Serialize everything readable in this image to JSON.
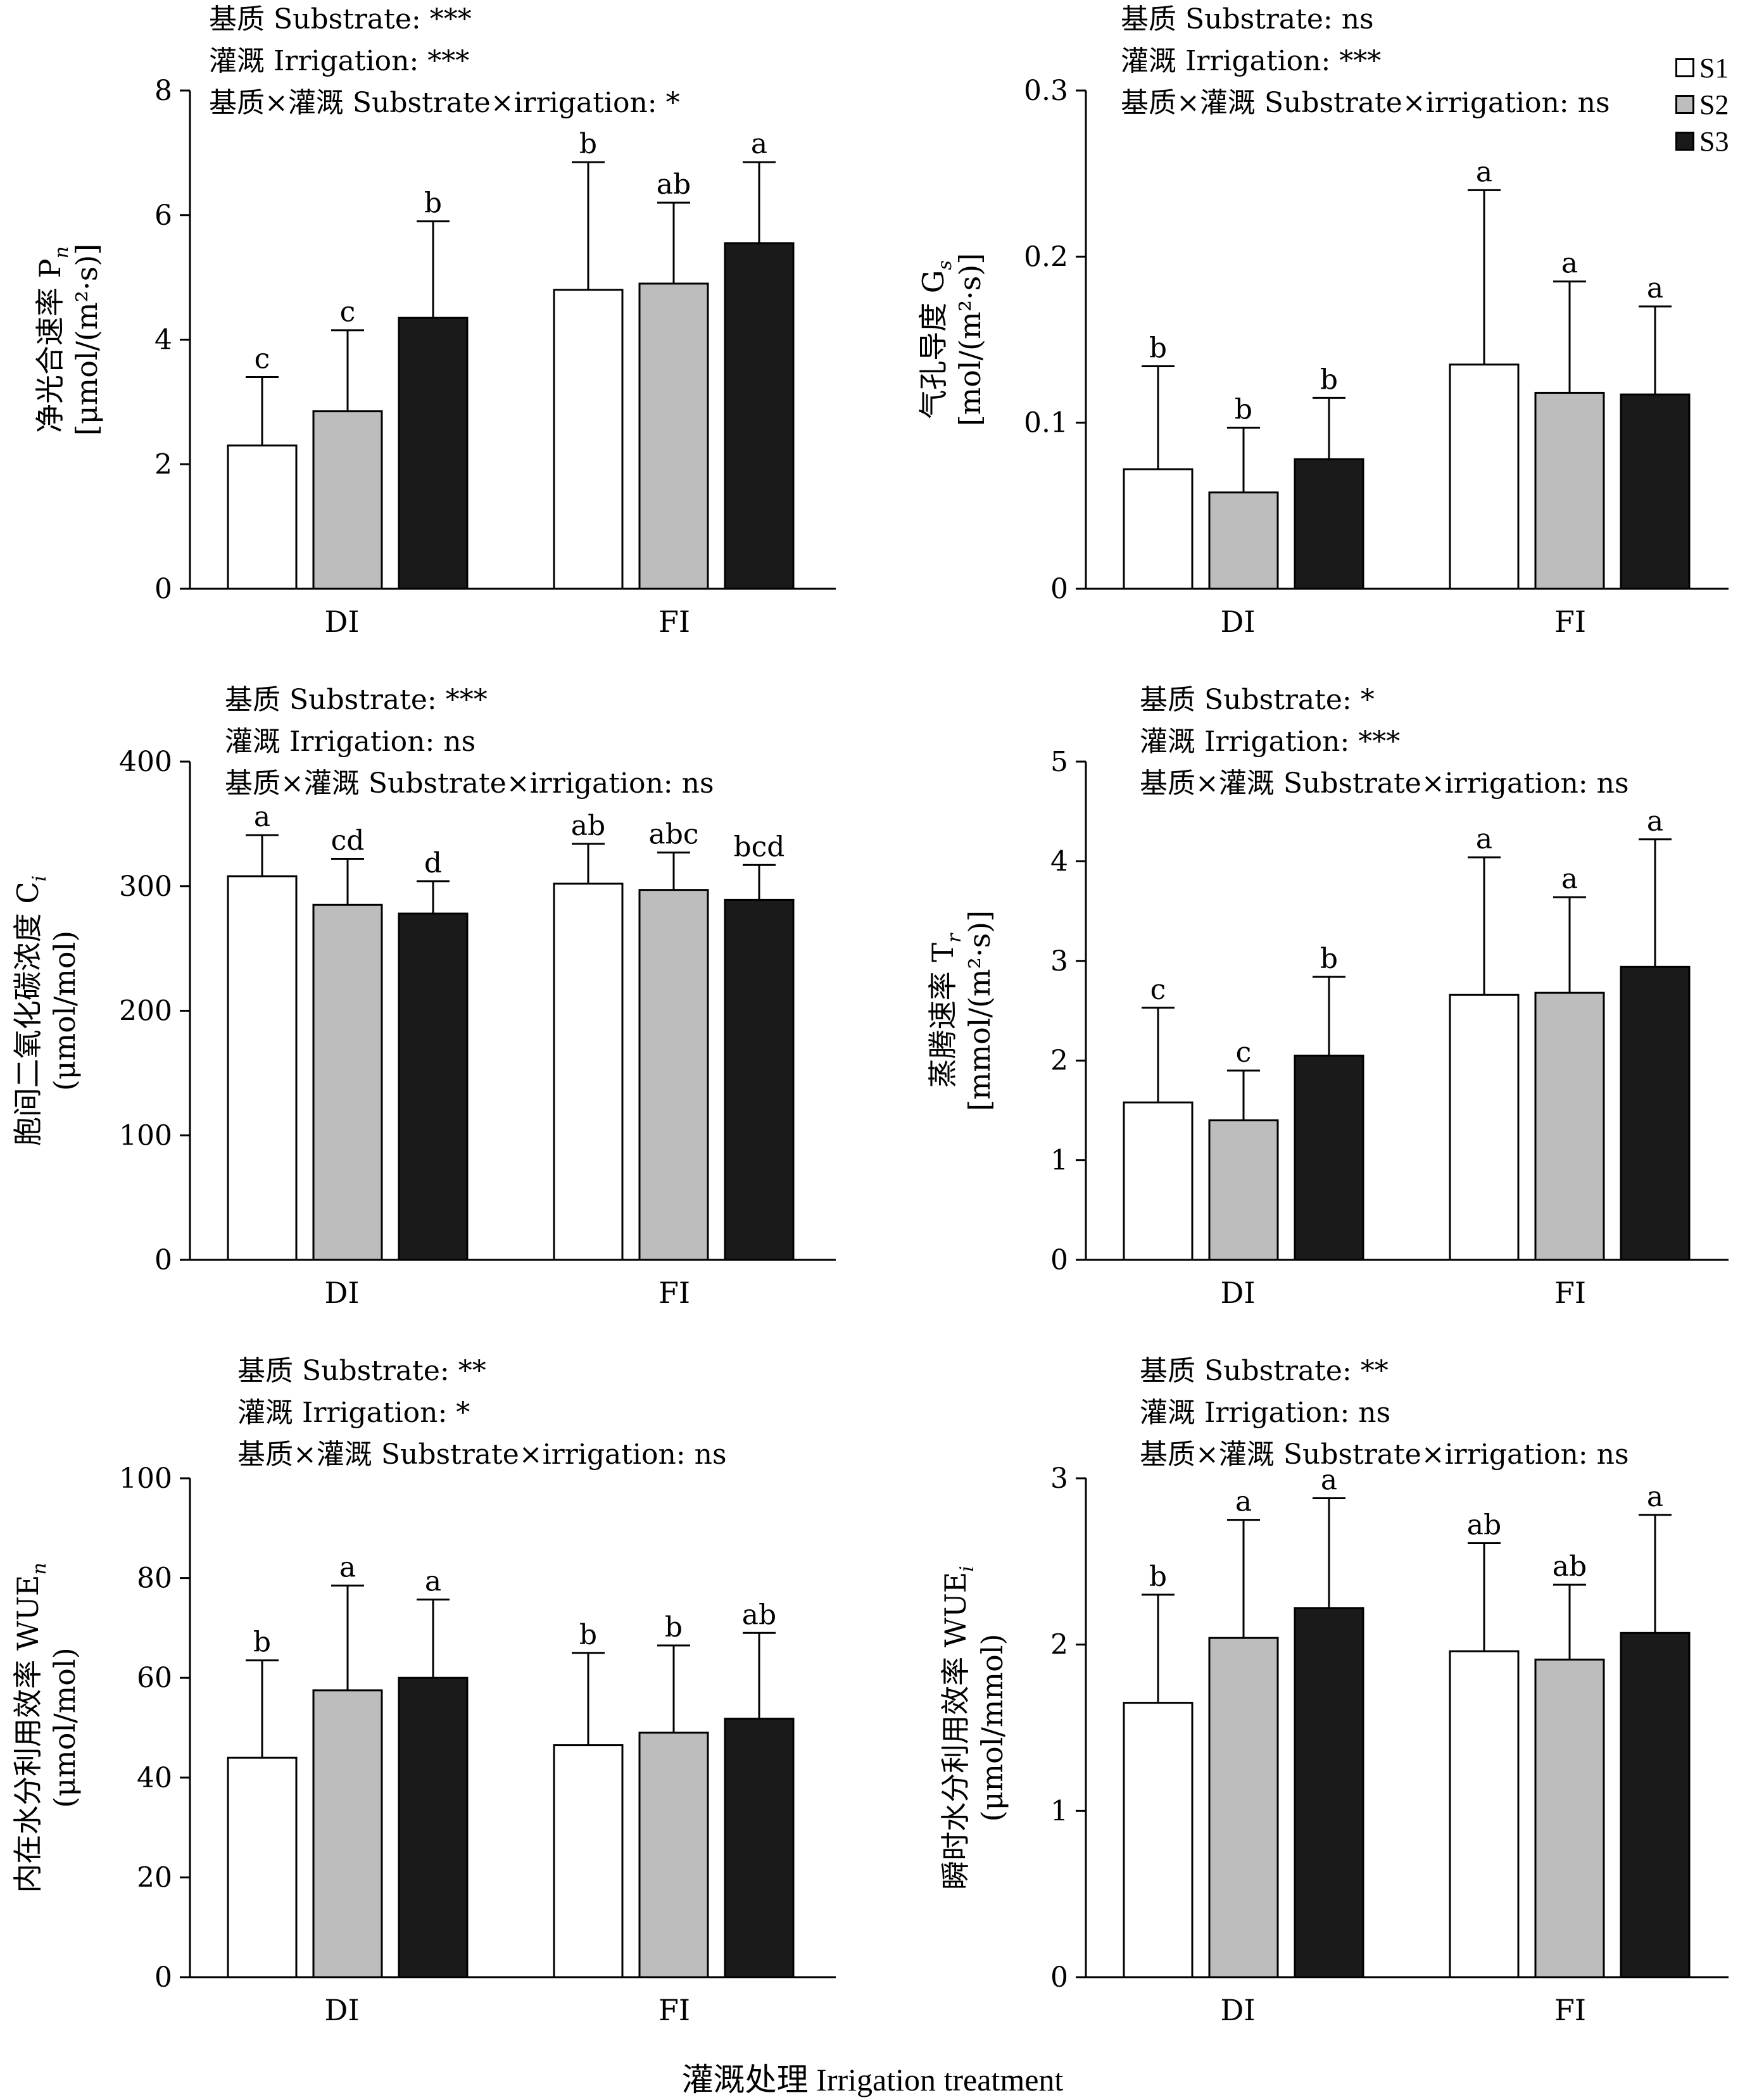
{
  "figure": {
    "xlabel": "灌溉处理 Irrigation treatment",
    "legend": [
      {
        "name": "S1",
        "color": "#ffffff"
      },
      {
        "name": "S2",
        "color": "#bdbdbd"
      },
      {
        "name": "S3",
        "color": "#1a1a1a"
      }
    ]
  },
  "chart_data": [
    {
      "type": "bar",
      "ylabel_main": "净光合速率 P",
      "ylabel_sub": "n",
      "ylabel_unit": "[μmol/(m²·s)]",
      "ylim": [
        0,
        8
      ],
      "yticks": [
        0,
        2,
        4,
        6,
        8
      ],
      "categories": [
        "DI",
        "FI"
      ],
      "stats": [
        "基质 Substrate: ***",
        "灌溉 Irrigation: ***",
        "基质×灌溉 Substrate×irrigation: *"
      ],
      "series": [
        {
          "name": "S1",
          "values": [
            2.3,
            4.8
          ],
          "errors": [
            1.1,
            2.05
          ],
          "letters": [
            "c",
            "b"
          ]
        },
        {
          "name": "S2",
          "values": [
            2.85,
            4.9
          ],
          "errors": [
            1.3,
            1.3
          ],
          "letters": [
            "c",
            "ab"
          ]
        },
        {
          "name": "S3",
          "values": [
            4.35,
            5.55
          ],
          "errors": [
            1.55,
            1.3
          ],
          "letters": [
            "b",
            "a"
          ]
        }
      ]
    },
    {
      "type": "bar",
      "ylabel_main": "气孔导度 G",
      "ylabel_sub": "s",
      "ylabel_unit": "[mol/(m²·s)]",
      "ylim": [
        0,
        0.3
      ],
      "yticks": [
        0,
        0.1,
        0.2,
        0.3
      ],
      "categories": [
        "DI",
        "FI"
      ],
      "stats": [
        "基质 Substrate: ns",
        "灌溉 Irrigation: ***",
        "基质×灌溉 Substrate×irrigation: ns"
      ],
      "series": [
        {
          "name": "S1",
          "values": [
            0.072,
            0.135
          ],
          "errors": [
            0.062,
            0.105
          ],
          "letters": [
            "b",
            "a"
          ]
        },
        {
          "name": "S2",
          "values": [
            0.058,
            0.118
          ],
          "errors": [
            0.039,
            0.067
          ],
          "letters": [
            "b",
            "a"
          ]
        },
        {
          "name": "S3",
          "values": [
            0.078,
            0.117
          ],
          "errors": [
            0.037,
            0.053
          ],
          "letters": [
            "b",
            "a"
          ]
        }
      ]
    },
    {
      "type": "bar",
      "ylabel_main": "胞间二氧化碳浓度 C",
      "ylabel_sub": "i",
      "ylabel_unit": "(μmol/mol)",
      "ylim": [
        0,
        400
      ],
      "yticks": [
        0,
        100,
        200,
        300,
        400
      ],
      "categories": [
        "DI",
        "FI"
      ],
      "stats": [
        "基质 Substrate: ***",
        "灌溉 Irrigation: ns",
        "基质×灌溉 Substrate×irrigation: ns"
      ],
      "series": [
        {
          "name": "S1",
          "values": [
            308,
            302
          ],
          "errors": [
            33,
            32
          ],
          "letters": [
            "a",
            "ab"
          ]
        },
        {
          "name": "S2",
          "values": [
            285,
            297
          ],
          "errors": [
            37,
            30
          ],
          "letters": [
            "cd",
            "abc"
          ]
        },
        {
          "name": "S3",
          "values": [
            278,
            289
          ],
          "errors": [
            26,
            28
          ],
          "letters": [
            "d",
            "bcd"
          ]
        }
      ]
    },
    {
      "type": "bar",
      "ylabel_main": "蒸腾速率 T",
      "ylabel_sub": "r",
      "ylabel_unit": "[mmol/(m²·s)]",
      "ylim": [
        0,
        5
      ],
      "yticks": [
        0,
        1,
        2,
        3,
        4,
        5
      ],
      "categories": [
        "DI",
        "FI"
      ],
      "stats": [
        "基质 Substrate: *",
        "灌溉 Irrigation: ***",
        "基质×灌溉 Substrate×irrigation: ns"
      ],
      "series": [
        {
          "name": "S1",
          "values": [
            1.58,
            2.66
          ],
          "errors": [
            0.95,
            1.38
          ],
          "letters": [
            "c",
            "a"
          ]
        },
        {
          "name": "S2",
          "values": [
            1.4,
            2.68
          ],
          "errors": [
            0.5,
            0.96
          ],
          "letters": [
            "c",
            "a"
          ]
        },
        {
          "name": "S3",
          "values": [
            2.05,
            2.94
          ],
          "errors": [
            0.79,
            1.28
          ],
          "letters": [
            "b",
            "a"
          ]
        }
      ]
    },
    {
      "type": "bar",
      "ylabel_main": "内在水分利用效率 WUE",
      "ylabel_sub": "n",
      "ylabel_unit": "(μmol/mol)",
      "ylim": [
        0,
        100
      ],
      "yticks": [
        0,
        20,
        40,
        60,
        80,
        100
      ],
      "categories": [
        "DI",
        "FI"
      ],
      "stats": [
        "基质 Substrate: **",
        "灌溉 Irrigation: *",
        "基质×灌溉 Substrate×irrigation: ns"
      ],
      "series": [
        {
          "name": "S1",
          "values": [
            44,
            46.5
          ],
          "errors": [
            19.5,
            18.5
          ],
          "letters": [
            "b",
            "b"
          ]
        },
        {
          "name": "S2",
          "values": [
            57.5,
            49
          ],
          "errors": [
            21,
            17.5
          ],
          "letters": [
            "a",
            "b"
          ]
        },
        {
          "name": "S3",
          "values": [
            60,
            51.8
          ],
          "errors": [
            15.7,
            17.2
          ],
          "letters": [
            "a",
            "ab"
          ]
        }
      ]
    },
    {
      "type": "bar",
      "ylabel_main": "瞬时水分利用效率 WUE",
      "ylabel_sub": "i",
      "ylabel_unit": "(μmol/mmol)",
      "ylim": [
        0,
        3
      ],
      "yticks": [
        0,
        1,
        2,
        3
      ],
      "categories": [
        "DI",
        "FI"
      ],
      "stats": [
        "基质 Substrate: **",
        "灌溉 Irrigation: ns",
        "基质×灌溉 Substrate×irrigation: ns"
      ],
      "series": [
        {
          "name": "S1",
          "values": [
            1.65,
            1.96
          ],
          "errors": [
            0.65,
            0.65
          ],
          "letters": [
            "b",
            "ab"
          ]
        },
        {
          "name": "S2",
          "values": [
            2.04,
            1.91
          ],
          "errors": [
            0.71,
            0.45
          ],
          "letters": [
            "a",
            "ab"
          ]
        },
        {
          "name": "S3",
          "values": [
            2.22,
            2.07
          ],
          "errors": [
            0.66,
            0.71
          ],
          "letters": [
            "a",
            "a"
          ]
        }
      ]
    }
  ]
}
